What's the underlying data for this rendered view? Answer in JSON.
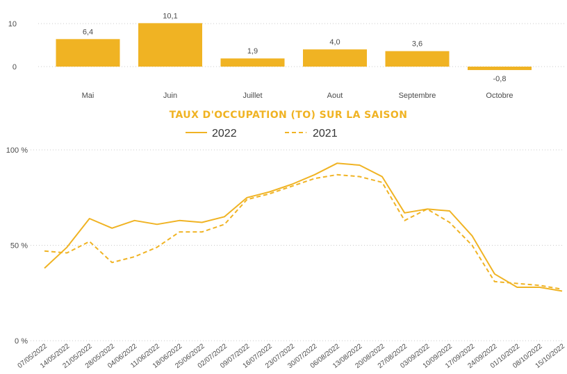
{
  "colors": {
    "accent": "#F0B323",
    "grid": "#c8c8c8",
    "text": "#4a4a4a"
  },
  "chart_data": [
    {
      "type": "bar",
      "categories": [
        "Mai",
        "Juin",
        "Juillet",
        "Aout",
        "Septembre",
        "Octobre"
      ],
      "values": [
        6.4,
        10.1,
        1.9,
        4.0,
        3.6,
        -0.8
      ],
      "value_labels": [
        "6,4",
        "10,1",
        "1,9",
        "4,0",
        "3,6",
        "-0,8"
      ],
      "yticks": [
        0,
        10
      ],
      "ytick_labels": [
        "0",
        "10"
      ],
      "ylim": [
        -1.5,
        10.5
      ],
      "grid": true,
      "color": "#F0B323"
    },
    {
      "type": "line",
      "title": "TAUX D'OCCUPATION (TO) SUR LA SAISON",
      "legend_position": "top-center",
      "x": [
        "07/05/2022",
        "14/05/2022",
        "21/05/2022",
        "28/05/2022",
        "04/06/2022",
        "11/06/2022",
        "18/06/2022",
        "25/06/2022",
        "02/07/2022",
        "09/07/2022",
        "16/07/2022",
        "23/07/2022",
        "30/07/2022",
        "06/08/2022",
        "13/08/2022",
        "20/08/2022",
        "27/08/2022",
        "03/09/2022",
        "10/09/2022",
        "17/09/2022",
        "24/09/2022",
        "01/10/2022",
        "08/10/2022",
        "15/10/2022"
      ],
      "yticks": [
        0,
        50,
        100
      ],
      "ytick_labels": [
        "0 %",
        "50 %",
        "100 %"
      ],
      "ylim": [
        0,
        100
      ],
      "grid": true,
      "series": [
        {
          "name": "2022",
          "style": "solid",
          "color": "#F0B323",
          "values": [
            38,
            49,
            64,
            59,
            63,
            61,
            63,
            62,
            65,
            75,
            78,
            82,
            87,
            93,
            92,
            86,
            67,
            69,
            68,
            55,
            35,
            28,
            28,
            26
          ]
        },
        {
          "name": "2021",
          "style": "dashed",
          "color": "#F0B323",
          "values": [
            47,
            46,
            52,
            41,
            44,
            49,
            57,
            57,
            61,
            74,
            77,
            81,
            85,
            87,
            86,
            83,
            63,
            69,
            62,
            50,
            31,
            30,
            29,
            27
          ]
        }
      ]
    }
  ]
}
